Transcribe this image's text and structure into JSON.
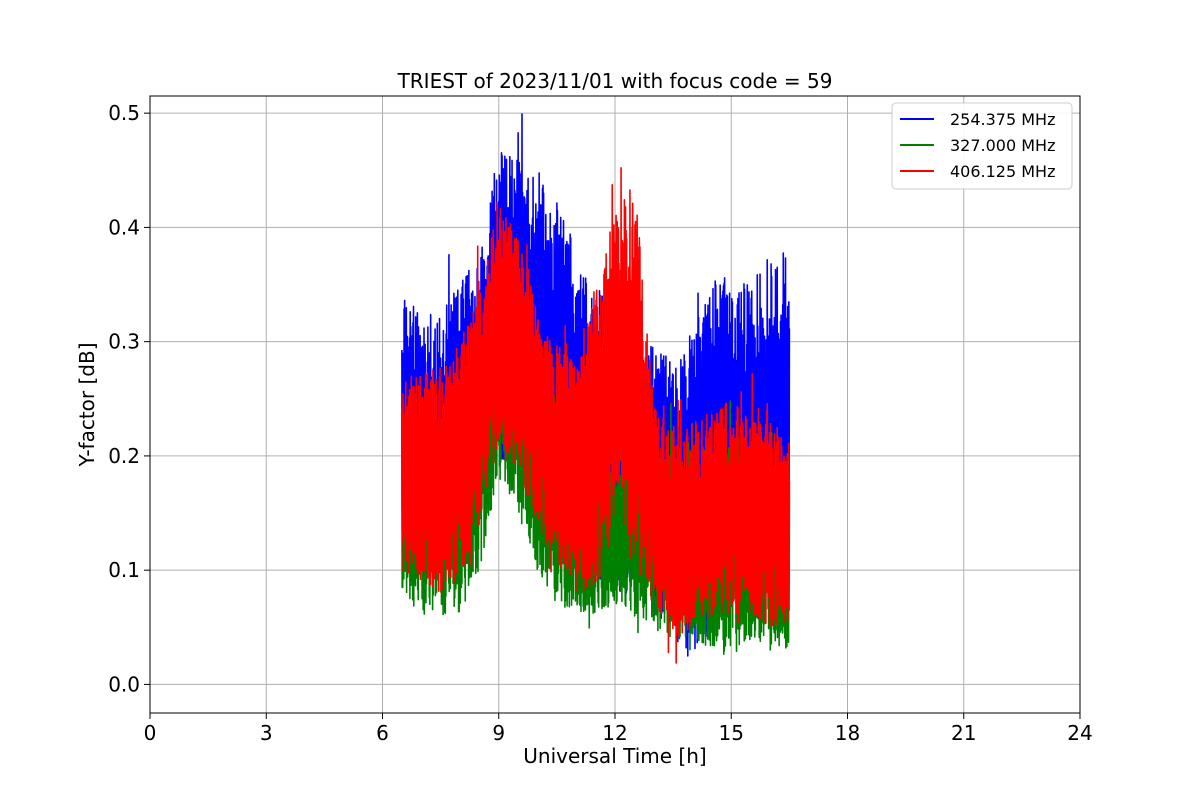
{
  "chart_data": {
    "type": "line",
    "title": "TRIEST of 2023/11/01 with focus code = 59",
    "xlabel": "Universal Time [h]",
    "ylabel": "Y-factor [dB]",
    "xlim": [
      0,
      24
    ],
    "ylim": [
      -0.025,
      0.515
    ],
    "xticks": [
      0,
      3,
      6,
      9,
      12,
      15,
      18,
      21,
      24
    ],
    "yticks": [
      0.0,
      0.1,
      0.2,
      0.3,
      0.4,
      0.5
    ],
    "ytick_labels": [
      "0.0",
      "0.1",
      "0.2",
      "0.3",
      "0.4",
      "0.5"
    ],
    "grid": true,
    "legend_position": "top-right",
    "series": [
      {
        "name": "254.375 MHz",
        "color": "#0000ff",
        "x": [
          6.5,
          7.0,
          7.5,
          8.0,
          8.5,
          9.0,
          9.5,
          10.0,
          10.5,
          11.0,
          11.5,
          12.0,
          12.5,
          13.0,
          13.5,
          14.0,
          14.5,
          15.0,
          15.5,
          16.0,
          16.5
        ],
        "low": [
          0.1,
          0.1,
          0.1,
          0.11,
          0.15,
          0.2,
          0.18,
          0.15,
          0.12,
          0.1,
          0.08,
          0.08,
          0.08,
          0.06,
          0.04,
          0.02,
          0.05,
          0.08,
          0.06,
          0.06,
          0.04
        ],
        "high": [
          0.35,
          0.32,
          0.33,
          0.35,
          0.38,
          0.47,
          0.46,
          0.44,
          0.43,
          0.38,
          0.33,
          0.36,
          0.33,
          0.3,
          0.28,
          0.31,
          0.35,
          0.37,
          0.35,
          0.38,
          0.38
        ]
      },
      {
        "name": "327.000 MHz",
        "color": "#008000",
        "x": [
          6.5,
          7.0,
          7.5,
          8.0,
          8.5,
          9.0,
          9.5,
          10.0,
          10.5,
          11.0,
          11.5,
          12.0,
          12.5,
          13.0,
          13.5,
          14.0,
          14.5,
          15.0,
          15.5,
          16.0,
          16.5
        ],
        "low": [
          0.08,
          0.06,
          0.06,
          0.06,
          0.1,
          0.18,
          0.15,
          0.1,
          0.07,
          0.06,
          0.06,
          0.07,
          0.06,
          0.05,
          0.04,
          0.04,
          0.03,
          0.02,
          0.04,
          0.03,
          0.02
        ],
        "high": [
          0.25,
          0.23,
          0.24,
          0.26,
          0.3,
          0.36,
          0.32,
          0.28,
          0.24,
          0.22,
          0.2,
          0.2,
          0.2,
          0.22,
          0.2,
          0.2,
          0.21,
          0.22,
          0.21,
          0.2,
          0.2
        ]
      },
      {
        "name": "406.125 MHz",
        "color": "#ff0000",
        "x": [
          6.5,
          7.0,
          7.5,
          8.0,
          8.5,
          9.0,
          9.5,
          10.0,
          10.5,
          11.0,
          11.5,
          12.0,
          12.5,
          13.0,
          13.5,
          14.0,
          14.5,
          15.0,
          15.5,
          16.0,
          16.5
        ],
        "low": [
          0.1,
          0.09,
          0.08,
          0.09,
          0.14,
          0.21,
          0.18,
          0.14,
          0.1,
          0.08,
          0.08,
          0.14,
          0.1,
          0.07,
          0.04,
          0.05,
          0.06,
          0.06,
          0.06,
          0.05,
          0.05
        ],
        "high": [
          0.28,
          0.27,
          0.28,
          0.3,
          0.36,
          0.43,
          0.39,
          0.33,
          0.3,
          0.28,
          0.35,
          0.42,
          0.44,
          0.25,
          0.22,
          0.23,
          0.24,
          0.25,
          0.23,
          0.23,
          0.22
        ]
      }
    ]
  }
}
